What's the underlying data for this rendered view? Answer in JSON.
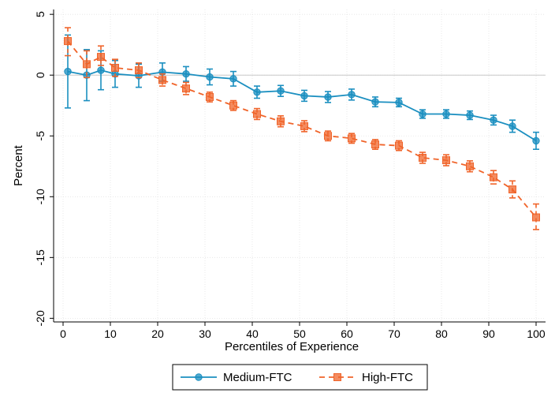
{
  "chart_data": {
    "type": "line",
    "title": "",
    "xlabel": "Percentiles of Experience",
    "ylabel": "Percent",
    "xlim": [
      -2,
      102
    ],
    "ylim": [
      -20.3,
      5.4
    ],
    "xticks": [
      0,
      10,
      20,
      30,
      40,
      50,
      60,
      70,
      80,
      90,
      100
    ],
    "yticks": [
      5,
      0,
      -5,
      -10,
      -15,
      -20
    ],
    "reference_line_y": 0,
    "legend_position": "bottom-center",
    "colors": {
      "Medium-FTC": "#1b8fc0",
      "High-FTC": "#f0642a"
    },
    "series": [
      {
        "name": "Medium-FTC",
        "style": "solid",
        "marker": "circle",
        "x": [
          1,
          5,
          8,
          11,
          16,
          21,
          26,
          31,
          36,
          41,
          46,
          51,
          56,
          61,
          66,
          71,
          76,
          81,
          86,
          91,
          95,
          100
        ],
        "y": [
          0.3,
          0.0,
          0.4,
          0.1,
          -0.05,
          0.25,
          0.1,
          -0.15,
          -0.3,
          -1.4,
          -1.3,
          -1.7,
          -1.8,
          -1.6,
          -2.2,
          -2.25,
          -3.2,
          -3.2,
          -3.3,
          -3.7,
          -4.2,
          -5.4
        ],
        "ci_low": [
          -2.7,
          -2.1,
          -1.2,
          -1.0,
          -1.0,
          -0.5,
          -0.5,
          -0.8,
          -0.9,
          -1.9,
          -1.75,
          -2.15,
          -2.25,
          -2.05,
          -2.6,
          -2.6,
          -3.55,
          -3.55,
          -3.65,
          -4.1,
          -4.7,
          -6.1
        ],
        "ci_high": [
          3.3,
          2.1,
          2.0,
          1.2,
          0.9,
          1.0,
          0.7,
          0.5,
          0.3,
          -0.9,
          -0.85,
          -1.25,
          -1.35,
          -1.15,
          -1.8,
          -1.9,
          -2.85,
          -2.85,
          -2.95,
          -3.3,
          -3.7,
          -4.7
        ]
      },
      {
        "name": "High-FTC",
        "style": "dashed",
        "marker": "square",
        "x": [
          1,
          5,
          8,
          11,
          16,
          21,
          26,
          31,
          36,
          41,
          46,
          51,
          56,
          61,
          66,
          71,
          76,
          81,
          86,
          91,
          95,
          100
        ],
        "y": [
          2.8,
          0.9,
          1.5,
          0.6,
          0.4,
          -0.4,
          -1.1,
          -1.8,
          -2.5,
          -3.2,
          -3.8,
          -4.2,
          -5.0,
          -5.2,
          -5.7,
          -5.8,
          -6.8,
          -7.0,
          -7.5,
          -8.4,
          -9.4,
          -11.7
        ],
        "ci_low": [
          1.6,
          -0.2,
          0.8,
          -0.1,
          -0.2,
          -0.9,
          -1.6,
          -2.2,
          -2.9,
          -3.65,
          -4.25,
          -4.65,
          -5.4,
          -5.6,
          -6.1,
          -6.2,
          -7.25,
          -7.45,
          -7.95,
          -8.95,
          -10.1,
          -12.7
        ],
        "ci_high": [
          3.9,
          2.0,
          2.4,
          1.3,
          1.0,
          0.1,
          -0.6,
          -1.4,
          -2.1,
          -2.75,
          -3.35,
          -3.75,
          -4.6,
          -4.8,
          -5.3,
          -5.4,
          -6.35,
          -6.55,
          -7.05,
          -7.85,
          -8.7,
          -10.6
        ]
      }
    ]
  }
}
